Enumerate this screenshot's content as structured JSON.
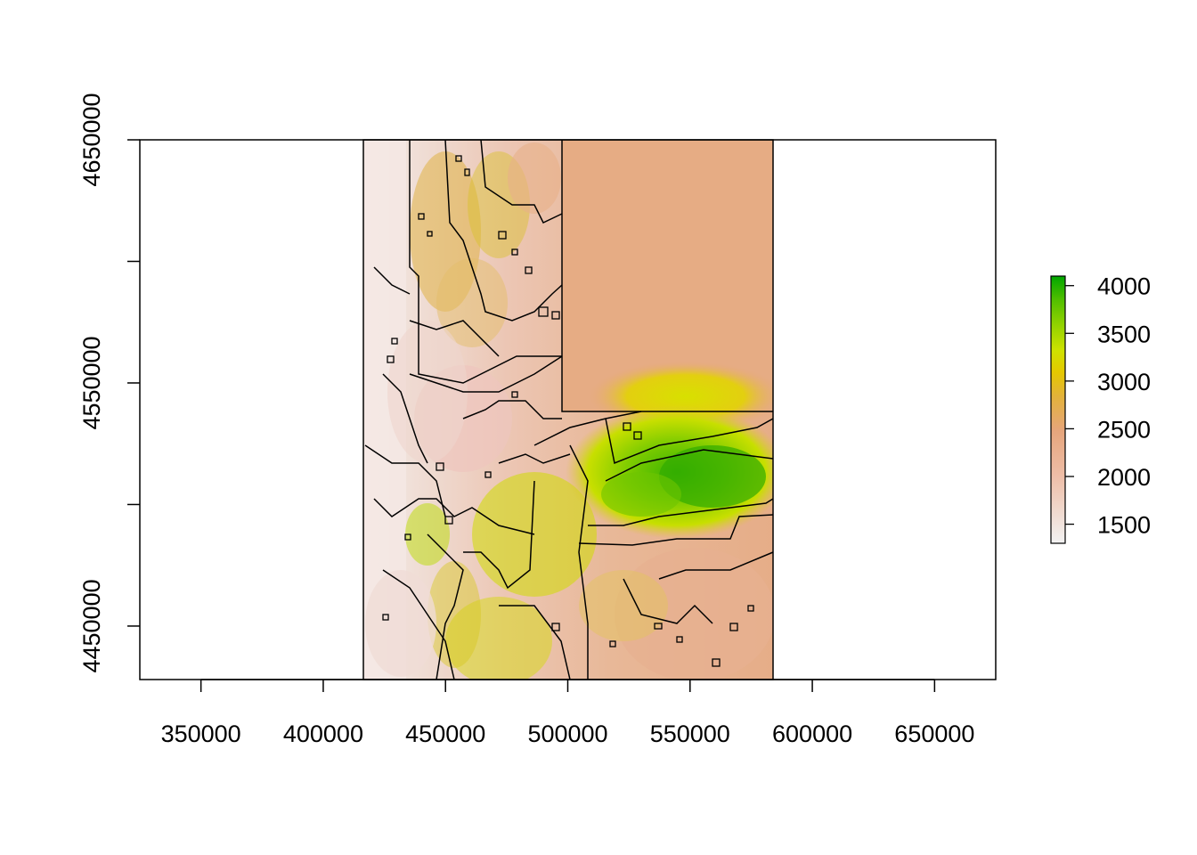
{
  "chart_data": {
    "type": "heatmap",
    "title": "",
    "xlabel": "",
    "ylabel": "",
    "xlim": [
      325000,
      675000
    ],
    "ylim": [
      4428000,
      4650000
    ],
    "x_ticks": [
      {
        "value": 350000,
        "label": "350000"
      },
      {
        "value": 400000,
        "label": "400000"
      },
      {
        "value": 450000,
        "label": "450000"
      },
      {
        "value": 500000,
        "label": "500000"
      },
      {
        "value": 550000,
        "label": "550000"
      },
      {
        "value": 600000,
        "label": "600000"
      },
      {
        "value": 650000,
        "label": "650000"
      }
    ],
    "y_ticks": [
      {
        "value": 4450000,
        "label": "4450000"
      },
      {
        "value": 4500000,
        "label": "4500000",
        "labeled": false
      },
      {
        "value": 4550000,
        "label": "4550000"
      },
      {
        "value": 4600000,
        "label": "4600000",
        "labeled": false
      },
      {
        "value": 4650000,
        "label": "4650000"
      }
    ],
    "raster_extent": {
      "xmin": 417000,
      "xmax": 582000,
      "ymin": 4428000,
      "ymax": 4650000
    },
    "legend": {
      "position": "right",
      "range": [
        1300,
        4100
      ],
      "ticks": [
        {
          "value": 1500,
          "label": "1500"
        },
        {
          "value": 2000,
          "label": "2000"
        },
        {
          "value": 2500,
          "label": "2500"
        },
        {
          "value": 3000,
          "label": "3000"
        },
        {
          "value": 3500,
          "label": "3500"
        },
        {
          "value": 4000,
          "label": "4000"
        }
      ],
      "colors": [
        "#f2f2f2",
        "#eebea8",
        "#e6a57c",
        "#e3b23a",
        "#e5c800",
        "#cfe200",
        "#90d200",
        "#52bf00",
        "#00a600"
      ]
    },
    "grid": false
  }
}
